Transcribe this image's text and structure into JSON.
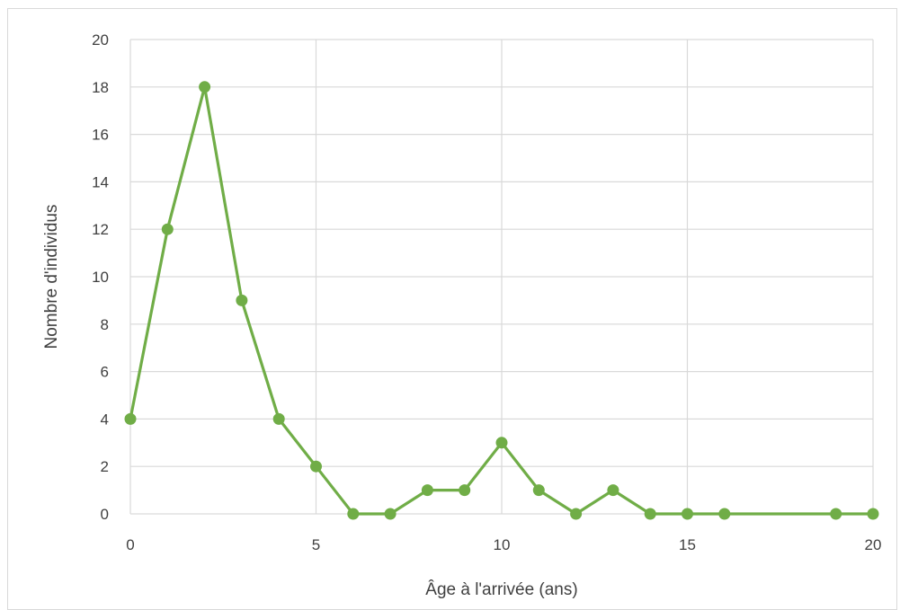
{
  "chart_data": {
    "type": "scatter",
    "title": "",
    "xlabel": "Âge à l'arrivée (ans)",
    "ylabel": "Nombre d'individus",
    "xlim": [
      0,
      20
    ],
    "ylim": [
      0,
      20
    ],
    "xticks": [
      0,
      5,
      10,
      15,
      20
    ],
    "yticks": [
      0,
      2,
      4,
      6,
      8,
      10,
      12,
      14,
      16,
      18,
      20
    ],
    "grid": true,
    "legend": "none",
    "series": [
      {
        "color": "#70ad47",
        "lines": true,
        "markers": true,
        "points": [
          {
            "x": 0,
            "y": 4
          },
          {
            "x": 1,
            "y": 12
          },
          {
            "x": 2,
            "y": 18
          },
          {
            "x": 3,
            "y": 9
          },
          {
            "x": 4,
            "y": 4
          },
          {
            "x": 5,
            "y": 2
          },
          {
            "x": 6,
            "y": 0
          },
          {
            "x": 7,
            "y": 0
          },
          {
            "x": 8,
            "y": 1
          },
          {
            "x": 9,
            "y": 1
          },
          {
            "x": 10,
            "y": 3
          },
          {
            "x": 11,
            "y": 1
          },
          {
            "x": 12,
            "y": 0
          },
          {
            "x": 13,
            "y": 1
          },
          {
            "x": 14,
            "y": 0
          },
          {
            "x": 15,
            "y": 0
          },
          {
            "x": 16,
            "y": 0
          },
          {
            "x": 19,
            "y": 0
          },
          {
            "x": 20,
            "y": 0
          }
        ]
      }
    ]
  }
}
